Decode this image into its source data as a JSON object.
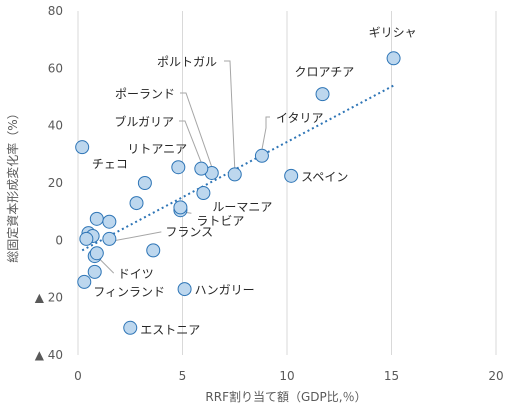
{
  "chart_data": {
    "type": "scatter",
    "title": "",
    "xlabel": "RRF割り当て額（GDP比,％）",
    "ylabel": "総固定資本形成変化率（%）",
    "xlim": [
      0,
      20
    ],
    "ylim": [
      -40,
      80
    ],
    "x_ticks": [
      0,
      5,
      10,
      15,
      20
    ],
    "y_ticks": [
      {
        "value": 80,
        "label": "80"
      },
      {
        "value": 60,
        "label": "60"
      },
      {
        "value": 40,
        "label": "40"
      },
      {
        "value": 20,
        "label": "20"
      },
      {
        "value": 0,
        "label": "0"
      },
      {
        "value": -20,
        "label": "▲ 20"
      },
      {
        "value": -40,
        "label": "▲ 40"
      }
    ],
    "grid": "vertical",
    "points": [
      {
        "x": 15.1,
        "y": 63.5,
        "label": "ギリシャ"
      },
      {
        "x": 11.7,
        "y": 51.0,
        "label": "クロアチア"
      },
      {
        "x": 7.5,
        "y": 23.0,
        "label": "ポルトガル"
      },
      {
        "x": 6.4,
        "y": 23.5,
        "label": "ポーランド"
      },
      {
        "x": 5.9,
        "y": 25.0,
        "label": "ブルガリア"
      },
      {
        "x": 8.8,
        "y": 29.5,
        "label": "イタリア"
      },
      {
        "x": 4.8,
        "y": 25.5,
        "label": "リトアニア"
      },
      {
        "x": 10.2,
        "y": 22.5,
        "label": "スペイン"
      },
      {
        "x": 6.0,
        "y": 16.5,
        "label": "ルーマニア"
      },
      {
        "x": 4.9,
        "y": 10.5,
        "label": "ラトビア"
      },
      {
        "x": 3.2,
        "y": 20.0,
        "label": "チェコ"
      },
      {
        "x": 1.5,
        "y": 0.5,
        "label": "フランス"
      },
      {
        "x": 0.8,
        "y": -5.5,
        "label": "ドイツ"
      },
      {
        "x": 0.3,
        "y": -14.5,
        "label": "フィンランド"
      },
      {
        "x": 5.1,
        "y": -17.0,
        "label": "ハンガリー"
      },
      {
        "x": 2.5,
        "y": -30.5,
        "label": "エストニア"
      },
      {
        "x": 0.2,
        "y": 32.5,
        "label": ""
      },
      {
        "x": 2.8,
        "y": 13.0,
        "label": ""
      },
      {
        "x": 4.9,
        "y": 11.5,
        "label": ""
      },
      {
        "x": 0.9,
        "y": 7.5,
        "label": ""
      },
      {
        "x": 1.5,
        "y": 6.5,
        "label": ""
      },
      {
        "x": 0.5,
        "y": 2.5,
        "label": ""
      },
      {
        "x": 0.7,
        "y": 1.5,
        "label": ""
      },
      {
        "x": 0.4,
        "y": 0.5,
        "label": ""
      },
      {
        "x": 0.9,
        "y": -4.5,
        "label": ""
      },
      {
        "x": 0.8,
        "y": -11.0,
        "label": ""
      },
      {
        "x": 3.6,
        "y": -3.5,
        "label": ""
      }
    ],
    "trendline": {
      "x": [
        0.2,
        15.1
      ],
      "y": [
        -3.5,
        54.0
      ],
      "style": "dotted"
    }
  }
}
